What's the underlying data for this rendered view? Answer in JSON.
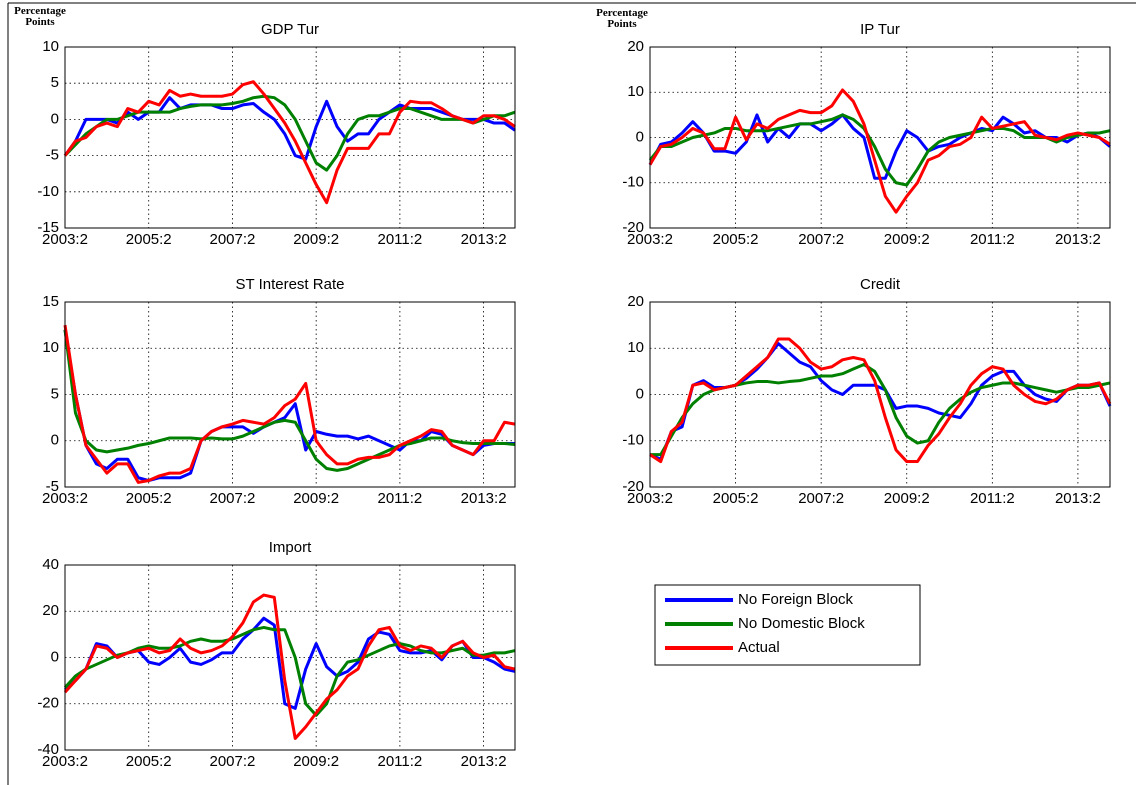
{
  "chart_data": [
    {
      "type": "line",
      "title": "GDP Tur",
      "ylabel": "Percentage Points",
      "categories": [
        "2003:2",
        null,
        null,
        null,
        null,
        null,
        null,
        null,
        "2005:2",
        null,
        null,
        null,
        null,
        null,
        null,
        null,
        "2007:2",
        null,
        null,
        null,
        null,
        null,
        null,
        null,
        "2009:2",
        null,
        null,
        null,
        null,
        null,
        null,
        null,
        "2011:2",
        null,
        null,
        null,
        null,
        null,
        null,
        null,
        "2013:2",
        null,
        null,
        null
      ],
      "ylim": [
        -15,
        10
      ],
      "yticks": [
        -15,
        -10,
        -5,
        0,
        5,
        10
      ],
      "grid": true,
      "series": [
        {
          "name": "No Foreign Block",
          "color": "#0000ff",
          "values": [
            -5,
            -3,
            0,
            0,
            0,
            -0.5,
            1,
            0,
            1,
            1,
            3,
            1.5,
            2,
            2,
            2,
            1.5,
            1.5,
            2,
            2.2,
            1,
            0,
            -2,
            -5,
            -5.5,
            -1,
            2.5,
            -1,
            -3,
            -2,
            -2,
            0,
            1,
            2,
            1.5,
            1.5,
            1.5,
            1,
            0.5,
            0,
            0,
            0,
            -0.5,
            -0.5,
            -1.5
          ]
        },
        {
          "name": "No Domestic Block",
          "color": "#008000",
          "values": [
            -5,
            -3.5,
            -2,
            -1,
            0,
            0,
            0.5,
            1,
            1,
            1,
            1,
            1.5,
            1.8,
            2,
            2,
            2,
            2.2,
            2.5,
            3,
            3.2,
            3,
            2,
            0,
            -3,
            -6,
            -7,
            -5,
            -2,
            0,
            0.5,
            0.5,
            1,
            1.5,
            1.5,
            1,
            0.5,
            0,
            0,
            0,
            -0.5,
            0,
            0.5,
            0.5,
            1
          ]
        },
        {
          "name": "Actual",
          "color": "#ff0000",
          "values": [
            -5,
            -3,
            -2.5,
            -1,
            -0.5,
            -1,
            1.5,
            1,
            2.5,
            2,
            4,
            3.2,
            3.5,
            3.2,
            3.2,
            3.2,
            3.5,
            4.8,
            5.2,
            3.5,
            1.5,
            -0.5,
            -3,
            -6,
            -9,
            -11.5,
            -7,
            -4,
            -4,
            -4,
            -2,
            -2,
            1,
            2.5,
            2.3,
            2.3,
            1.5,
            0.5,
            0,
            -0.5,
            0.5,
            0.5,
            0,
            -1
          ]
        }
      ]
    },
    {
      "type": "line",
      "title": "IP Tur",
      "ylabel": "Percentage Points",
      "categories": [
        "2003:2",
        null,
        null,
        null,
        null,
        null,
        null,
        null,
        "2005:2",
        null,
        null,
        null,
        null,
        null,
        null,
        null,
        "2007:2",
        null,
        null,
        null,
        null,
        null,
        null,
        null,
        "2009:2",
        null,
        null,
        null,
        null,
        null,
        null,
        null,
        "2011:2",
        null,
        null,
        null,
        null,
        null,
        null,
        null,
        "2013:2",
        null,
        null,
        null
      ],
      "ylim": [
        -20,
        20
      ],
      "yticks": [
        -20,
        -10,
        0,
        10,
        20
      ],
      "grid": true,
      "series": [
        {
          "color": "#0000ff",
          "values": [
            -6,
            -1.5,
            -1,
            1,
            3.5,
            1,
            -3,
            -3,
            -3.5,
            -1,
            5,
            -1,
            2,
            0,
            3,
            3,
            1.5,
            3,
            5,
            2,
            0,
            -9,
            -9,
            -3,
            1.5,
            0,
            -3,
            -2,
            -1.5,
            0,
            1,
            2,
            1.5,
            4.5,
            3,
            1,
            1.5,
            0,
            0,
            -1,
            0.5,
            1,
            0,
            -2
          ]
        },
        {
          "color": "#008000",
          "values": [
            -5,
            -2,
            -2,
            -1,
            0,
            0.5,
            1,
            2,
            2,
            1.5,
            1.5,
            1.5,
            2,
            2.5,
            3,
            3,
            3.5,
            4,
            5,
            4,
            2,
            -2,
            -7,
            -10,
            -10.5,
            -7,
            -3,
            -1,
            0,
            0.5,
            1,
            1.5,
            2,
            2,
            1.5,
            0,
            0,
            0,
            -1,
            0,
            0.5,
            1,
            1,
            1.5
          ]
        },
        {
          "color": "#ff0000",
          "values": [
            -6,
            -2,
            -1.5,
            0,
            2,
            1,
            -2.5,
            -2.5,
            4.5,
            -0.5,
            3,
            2,
            4,
            5,
            6,
            5.5,
            5.5,
            7,
            10.5,
            8,
            3,
            -5,
            -13,
            -16.5,
            -13,
            -10,
            -5,
            -4,
            -2,
            -1.5,
            0,
            4.5,
            2,
            2.5,
            3,
            3.5,
            0.5,
            0,
            -0.5,
            0.5,
            1,
            0.5,
            0,
            -1.5
          ]
        }
      ]
    },
    {
      "type": "line",
      "title": "ST Interest Rate",
      "categories": [
        "2003:2",
        null,
        null,
        null,
        null,
        null,
        null,
        null,
        "2005:2",
        null,
        null,
        null,
        null,
        null,
        null,
        null,
        "2007:2",
        null,
        null,
        null,
        null,
        null,
        null,
        null,
        "2009:2",
        null,
        null,
        null,
        null,
        null,
        null,
        null,
        "2011:2",
        null,
        null,
        null,
        null,
        null,
        null,
        null,
        "2013:2",
        null,
        null,
        null
      ],
      "ylim": [
        -5,
        15
      ],
      "yticks": [
        -5,
        0,
        5,
        10,
        15
      ],
      "grid": true,
      "series": [
        {
          "color": "#0000ff",
          "values": [
            12,
            5,
            -0.5,
            -2.5,
            -3,
            -2,
            -2,
            -4,
            -4.3,
            -4,
            -4,
            -4,
            -3.5,
            0,
            1,
            1.5,
            1.5,
            1.5,
            0.8,
            1.5,
            2,
            2.5,
            4,
            -1,
            1,
            0.7,
            0.5,
            0.5,
            0.2,
            0.5,
            0,
            -0.5,
            -1,
            0,
            0,
            1,
            0.7,
            -0.5,
            -1,
            -1.5,
            -0.5,
            -0.3,
            -0.3,
            -0.3
          ]
        },
        {
          "color": "#008000",
          "values": [
            12,
            3,
            0,
            -1,
            -1.2,
            -1,
            -0.8,
            -0.5,
            -0.3,
            0,
            0.3,
            0.3,
            0.3,
            0.2,
            0.3,
            0.2,
            0.2,
            0.5,
            1,
            1.5,
            2,
            2.2,
            2,
            0,
            -2,
            -3,
            -3.2,
            -3,
            -2.5,
            -2,
            -1.5,
            -1,
            -0.5,
            -0.3,
            0,
            0.3,
            0.3,
            0,
            -0.2,
            -0.3,
            -0.3,
            -0.3,
            -0.3,
            -0.4
          ]
        },
        {
          "color": "#ff0000",
          "values": [
            12.5,
            5,
            -0.5,
            -2,
            -3.5,
            -2.5,
            -2.5,
            -4.5,
            -4.3,
            -3.8,
            -3.5,
            -3.5,
            -3,
            0,
            1,
            1.5,
            1.8,
            2.2,
            2,
            1.8,
            2.5,
            3.8,
            4.5,
            6.2,
            0,
            -1.5,
            -2.5,
            -2.5,
            -2,
            -1.8,
            -1.8,
            -1.5,
            -0.5,
            0,
            0.5,
            1.2,
            1,
            -0.5,
            -1,
            -1.5,
            0,
            0,
            2,
            1.8
          ]
        }
      ]
    },
    {
      "type": "line",
      "title": "Credit",
      "categories": [
        "2003:2",
        null,
        null,
        null,
        null,
        null,
        null,
        null,
        "2005:2",
        null,
        null,
        null,
        null,
        null,
        null,
        null,
        "2007:2",
        null,
        null,
        null,
        null,
        null,
        null,
        null,
        "2009:2",
        null,
        null,
        null,
        null,
        null,
        null,
        null,
        "2011:2",
        null,
        null,
        null,
        null,
        null,
        null,
        null,
        "2013:2",
        null,
        null,
        null
      ],
      "ylim": [
        -20,
        20
      ],
      "yticks": [
        -20,
        -10,
        0,
        10,
        20
      ],
      "grid": true,
      "series": [
        {
          "color": "#0000ff",
          "values": [
            -13,
            -14,
            -8,
            -7,
            2,
            3,
            1.5,
            1.5,
            2,
            3.5,
            5.5,
            8,
            11,
            9,
            7,
            6,
            3,
            1,
            0,
            2,
            2,
            2,
            1,
            -3,
            -2.5,
            -2.5,
            -3,
            -4,
            -4.5,
            -5,
            -2,
            2,
            4,
            5,
            5,
            2,
            0,
            -1,
            -1.5,
            1,
            2,
            2,
            2.5,
            -2.5
          ]
        },
        {
          "color": "#008000",
          "values": [
            -13,
            -13,
            -9,
            -5,
            -2,
            0,
            1,
            1.5,
            2,
            2.5,
            2.8,
            2.8,
            2.5,
            2.8,
            3,
            3.5,
            4,
            4,
            4.5,
            5.5,
            6.5,
            5,
            1,
            -5,
            -9,
            -10.5,
            -10,
            -6,
            -3,
            -1,
            0.5,
            1.5,
            2,
            2.5,
            2.5,
            2,
            1.5,
            1,
            0.5,
            1,
            1.5,
            1.5,
            2,
            2.5
          ]
        },
        {
          "color": "#ff0000",
          "values": [
            -13,
            -14.5,
            -8,
            -6,
            2,
            2.5,
            1,
            1.5,
            2,
            4,
            6,
            8,
            12,
            12,
            10,
            7,
            5.5,
            6,
            7.5,
            8,
            7.5,
            3,
            -5,
            -12,
            -14.5,
            -14.5,
            -11,
            -8.5,
            -5,
            -2,
            2,
            4.5,
            6,
            5.5,
            2,
            0,
            -1.5,
            -2,
            -1,
            1,
            2,
            2,
            2.5,
            -2
          ]
        }
      ]
    },
    {
      "type": "line",
      "title": "Import",
      "categories": [
        "2003:2",
        null,
        null,
        null,
        null,
        null,
        null,
        null,
        "2005:2",
        null,
        null,
        null,
        null,
        null,
        null,
        null,
        "2007:2",
        null,
        null,
        null,
        null,
        null,
        null,
        null,
        "2009:2",
        null,
        null,
        null,
        null,
        null,
        null,
        null,
        "2011:2",
        null,
        null,
        null,
        null,
        null,
        null,
        null,
        "2013:2",
        null,
        null,
        null
      ],
      "ylim": [
        -40,
        40
      ],
      "yticks": [
        -40,
        -20,
        0,
        20,
        40
      ],
      "grid": true,
      "series": [
        {
          "color": "#0000ff",
          "values": [
            -14,
            -10,
            -5,
            6,
            5,
            0,
            2,
            3,
            -2,
            -3,
            0,
            4,
            -2,
            -3,
            -1,
            2,
            2,
            8,
            12,
            17,
            14,
            -20,
            -22,
            -5,
            6,
            -4,
            -8,
            -6,
            -2,
            8,
            11,
            10,
            3,
            2,
            2,
            3,
            -1,
            5,
            7,
            0,
            0,
            -2,
            -5,
            -6
          ]
        },
        {
          "color": "#008000",
          "values": [
            -13,
            -8,
            -5,
            -3,
            -1,
            1,
            2,
            4,
            5,
            4,
            4,
            5,
            7,
            8,
            7,
            7,
            8,
            10,
            12,
            13,
            12,
            12,
            0,
            -20,
            -25,
            -20,
            -8,
            -2,
            -1,
            1,
            3,
            5,
            6,
            5,
            3,
            2,
            2,
            3,
            4,
            1,
            1,
            2,
            2,
            3
          ]
        },
        {
          "color": "#ff0000",
          "values": [
            -15,
            -10,
            -5,
            5,
            4,
            0,
            2,
            3,
            4,
            2,
            3,
            8,
            4,
            2,
            3,
            5,
            9,
            15,
            24,
            27,
            26,
            -10,
            -35,
            -30,
            -24,
            -18,
            -14,
            -8,
            -5,
            5,
            12,
            13,
            5,
            3,
            5,
            4,
            0,
            5,
            7,
            2,
            0,
            1,
            -4,
            -5
          ]
        }
      ]
    }
  ]
}
